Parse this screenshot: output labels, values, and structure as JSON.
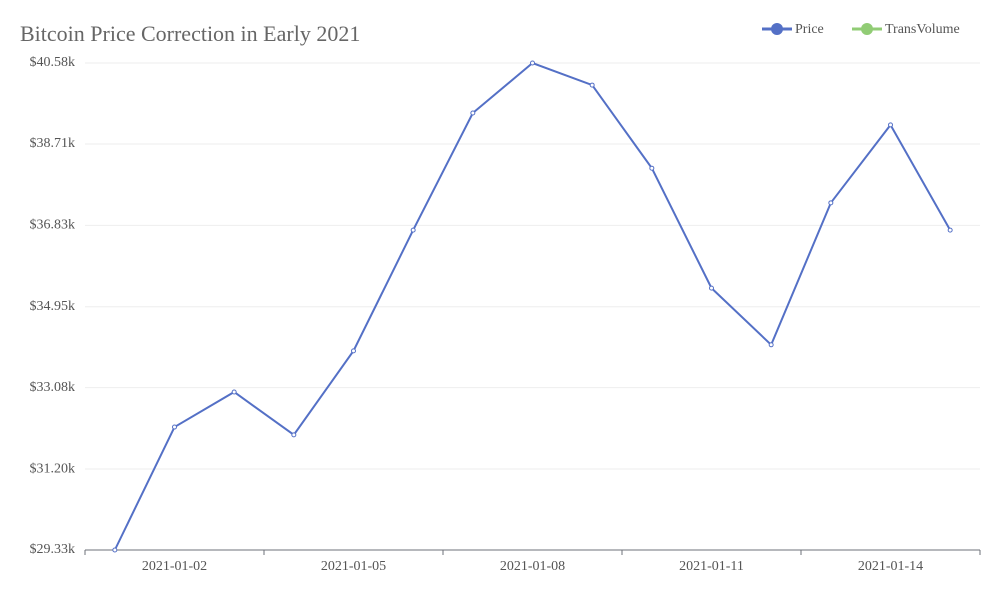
{
  "chart_data": {
    "type": "line",
    "title": "Bitcoin Price Correction in Early 2021",
    "categories": [
      null,
      "2021-01-02",
      null,
      null,
      "2021-01-05",
      null,
      null,
      "2021-01-08",
      null,
      null,
      "2021-01-11",
      null,
      null,
      "2021-01-14",
      null
    ],
    "series": [
      {
        "name": "Price",
        "color": "#5470c6",
        "values": [
          29330,
          32170,
          32980,
          31990,
          33930,
          36720,
          39425,
          40580,
          40070,
          38150,
          35380,
          34070,
          37350,
          39150,
          36720
        ]
      },
      {
        "name": "TransVolume",
        "color": "#91cc75",
        "values": [
          null,
          null,
          null,
          null,
          null,
          null,
          null,
          null,
          null,
          null,
          null,
          null,
          null,
          null,
          null
        ]
      }
    ],
    "ylim": [
      29330,
      40580
    ],
    "yticks": [
      {
        "value": 29330,
        "label": "$29.33k"
      },
      {
        "value": 31200,
        "label": "$31.20k"
      },
      {
        "value": 33080,
        "label": "$33.08k"
      },
      {
        "value": 34950,
        "label": "$34.95k"
      },
      {
        "value": 36830,
        "label": "$36.83k"
      },
      {
        "value": 38710,
        "label": "$38.71k"
      },
      {
        "value": 40580,
        "label": "$40.58k"
      }
    ],
    "grid": true,
    "legend": "top-right"
  }
}
